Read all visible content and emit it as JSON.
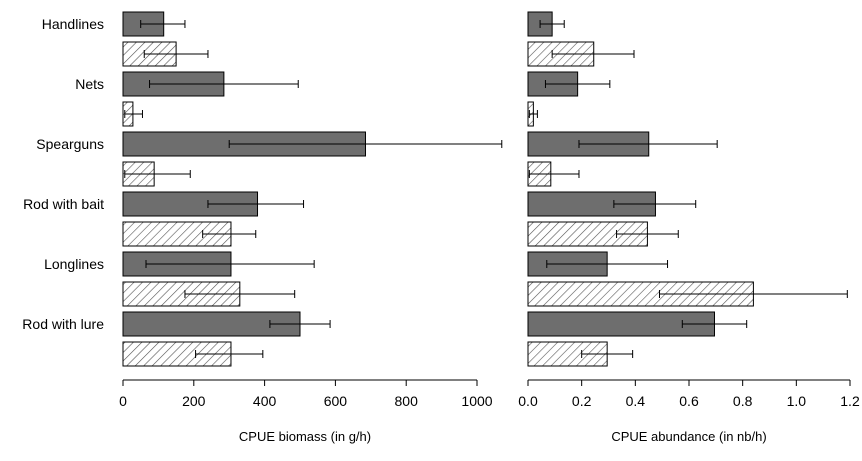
{
  "chart_data": [
    {
      "type": "bar",
      "orientation": "horizontal",
      "xlabel": "CPUE biomass (in g/h)",
      "xlim": [
        0,
        1000
      ],
      "xticks": [
        0,
        200,
        400,
        600,
        800,
        1000
      ],
      "xtick_labels": [
        "0",
        "200",
        "400",
        "600",
        "800",
        "1000"
      ],
      "categories": [
        "Handlines",
        "Nets",
        "Spearguns",
        "Rod with bait",
        "Longlines",
        "Rod with lure"
      ],
      "series": [
        {
          "fill": "#6e6e6e",
          "pattern": "solid",
          "values": [
            115,
            285,
            685,
            380,
            305,
            500
          ],
          "error_low": [
            50,
            75,
            300,
            240,
            65,
            415
          ],
          "error_high": [
            175,
            495,
            1070,
            510,
            540,
            585
          ]
        },
        {
          "fill": "#ffffff",
          "pattern": "hatched",
          "values": [
            150,
            28,
            88,
            305,
            330,
            305
          ],
          "error_low": [
            60,
            5,
            5,
            225,
            175,
            205
          ],
          "error_high": [
            240,
            55,
            190,
            375,
            485,
            395
          ]
        }
      ]
    },
    {
      "type": "bar",
      "orientation": "horizontal",
      "xlabel": "CPUE abundance (in nb/h)",
      "xlim": [
        0,
        1.2
      ],
      "xticks": [
        0,
        0.2,
        0.4,
        0.6,
        0.8,
        1.0,
        1.2
      ],
      "xtick_labels": [
        "0.0",
        "0.2",
        "0.4",
        "0.6",
        "0.8",
        "1.0",
        "1.2"
      ],
      "categories": [
        "Handlines",
        "Nets",
        "Spearguns",
        "Rod with bait",
        "Longlines",
        "Rod with lure"
      ],
      "series": [
        {
          "fill": "#6e6e6e",
          "pattern": "solid",
          "values": [
            0.09,
            0.185,
            0.45,
            0.475,
            0.295,
            0.695
          ],
          "error_low": [
            0.045,
            0.065,
            0.19,
            0.32,
            0.07,
            0.575
          ],
          "error_high": [
            0.135,
            0.305,
            0.705,
            0.625,
            0.52,
            0.815
          ]
        },
        {
          "fill": "#ffffff",
          "pattern": "hatched",
          "values": [
            0.245,
            0.02,
            0.085,
            0.445,
            0.84,
            0.295
          ],
          "error_low": [
            0.09,
            0.005,
            0.005,
            0.33,
            0.49,
            0.2
          ],
          "error_high": [
            0.395,
            0.035,
            0.19,
            0.56,
            1.19,
            0.39
          ]
        }
      ]
    }
  ]
}
